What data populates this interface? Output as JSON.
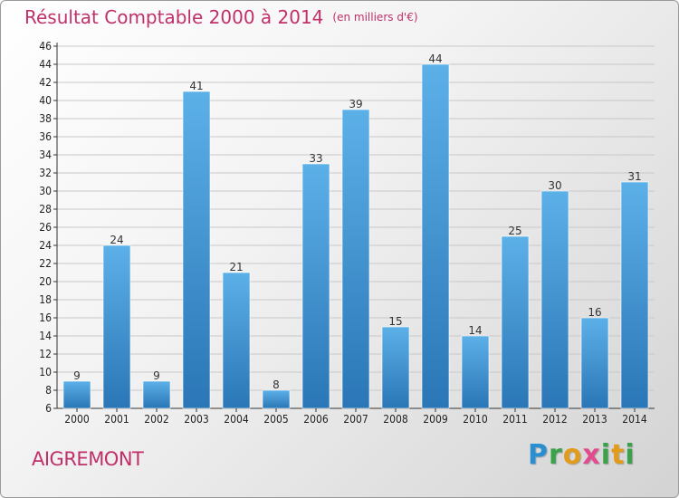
{
  "chart_data": {
    "type": "bar",
    "title": "Résultat Comptable 2000 à 2014",
    "unit_label": "(en milliers d'€)",
    "categories": [
      "2000",
      "2001",
      "2002",
      "2003",
      "2004",
      "2005",
      "2006",
      "2007",
      "2008",
      "2009",
      "2010",
      "2011",
      "2012",
      "2013",
      "2014"
    ],
    "values": [
      9,
      24,
      9,
      41,
      21,
      8,
      33,
      39,
      15,
      44,
      14,
      25,
      30,
      16,
      31
    ],
    "ylim": [
      6,
      46
    ],
    "yticks": [
      6,
      8,
      10,
      12,
      14,
      16,
      18,
      20,
      22,
      24,
      26,
      28,
      30,
      32,
      34,
      36,
      38,
      40,
      42,
      44,
      46
    ],
    "grid": true,
    "colors": {
      "bar_light": "#5aaee6",
      "bar_dark": "#2b78b8",
      "title": "#c0306a"
    }
  },
  "commune": "AIGREMONT",
  "logo": {
    "letters": [
      "P",
      "r",
      "o",
      "x",
      "i",
      "t",
      "i"
    ],
    "colors": [
      "#2a8fd1",
      "#3aa24a",
      "#e39b1c",
      "#e34b8f",
      "#3aa24a",
      "#e39b1c",
      "#3aa24a"
    ]
  }
}
